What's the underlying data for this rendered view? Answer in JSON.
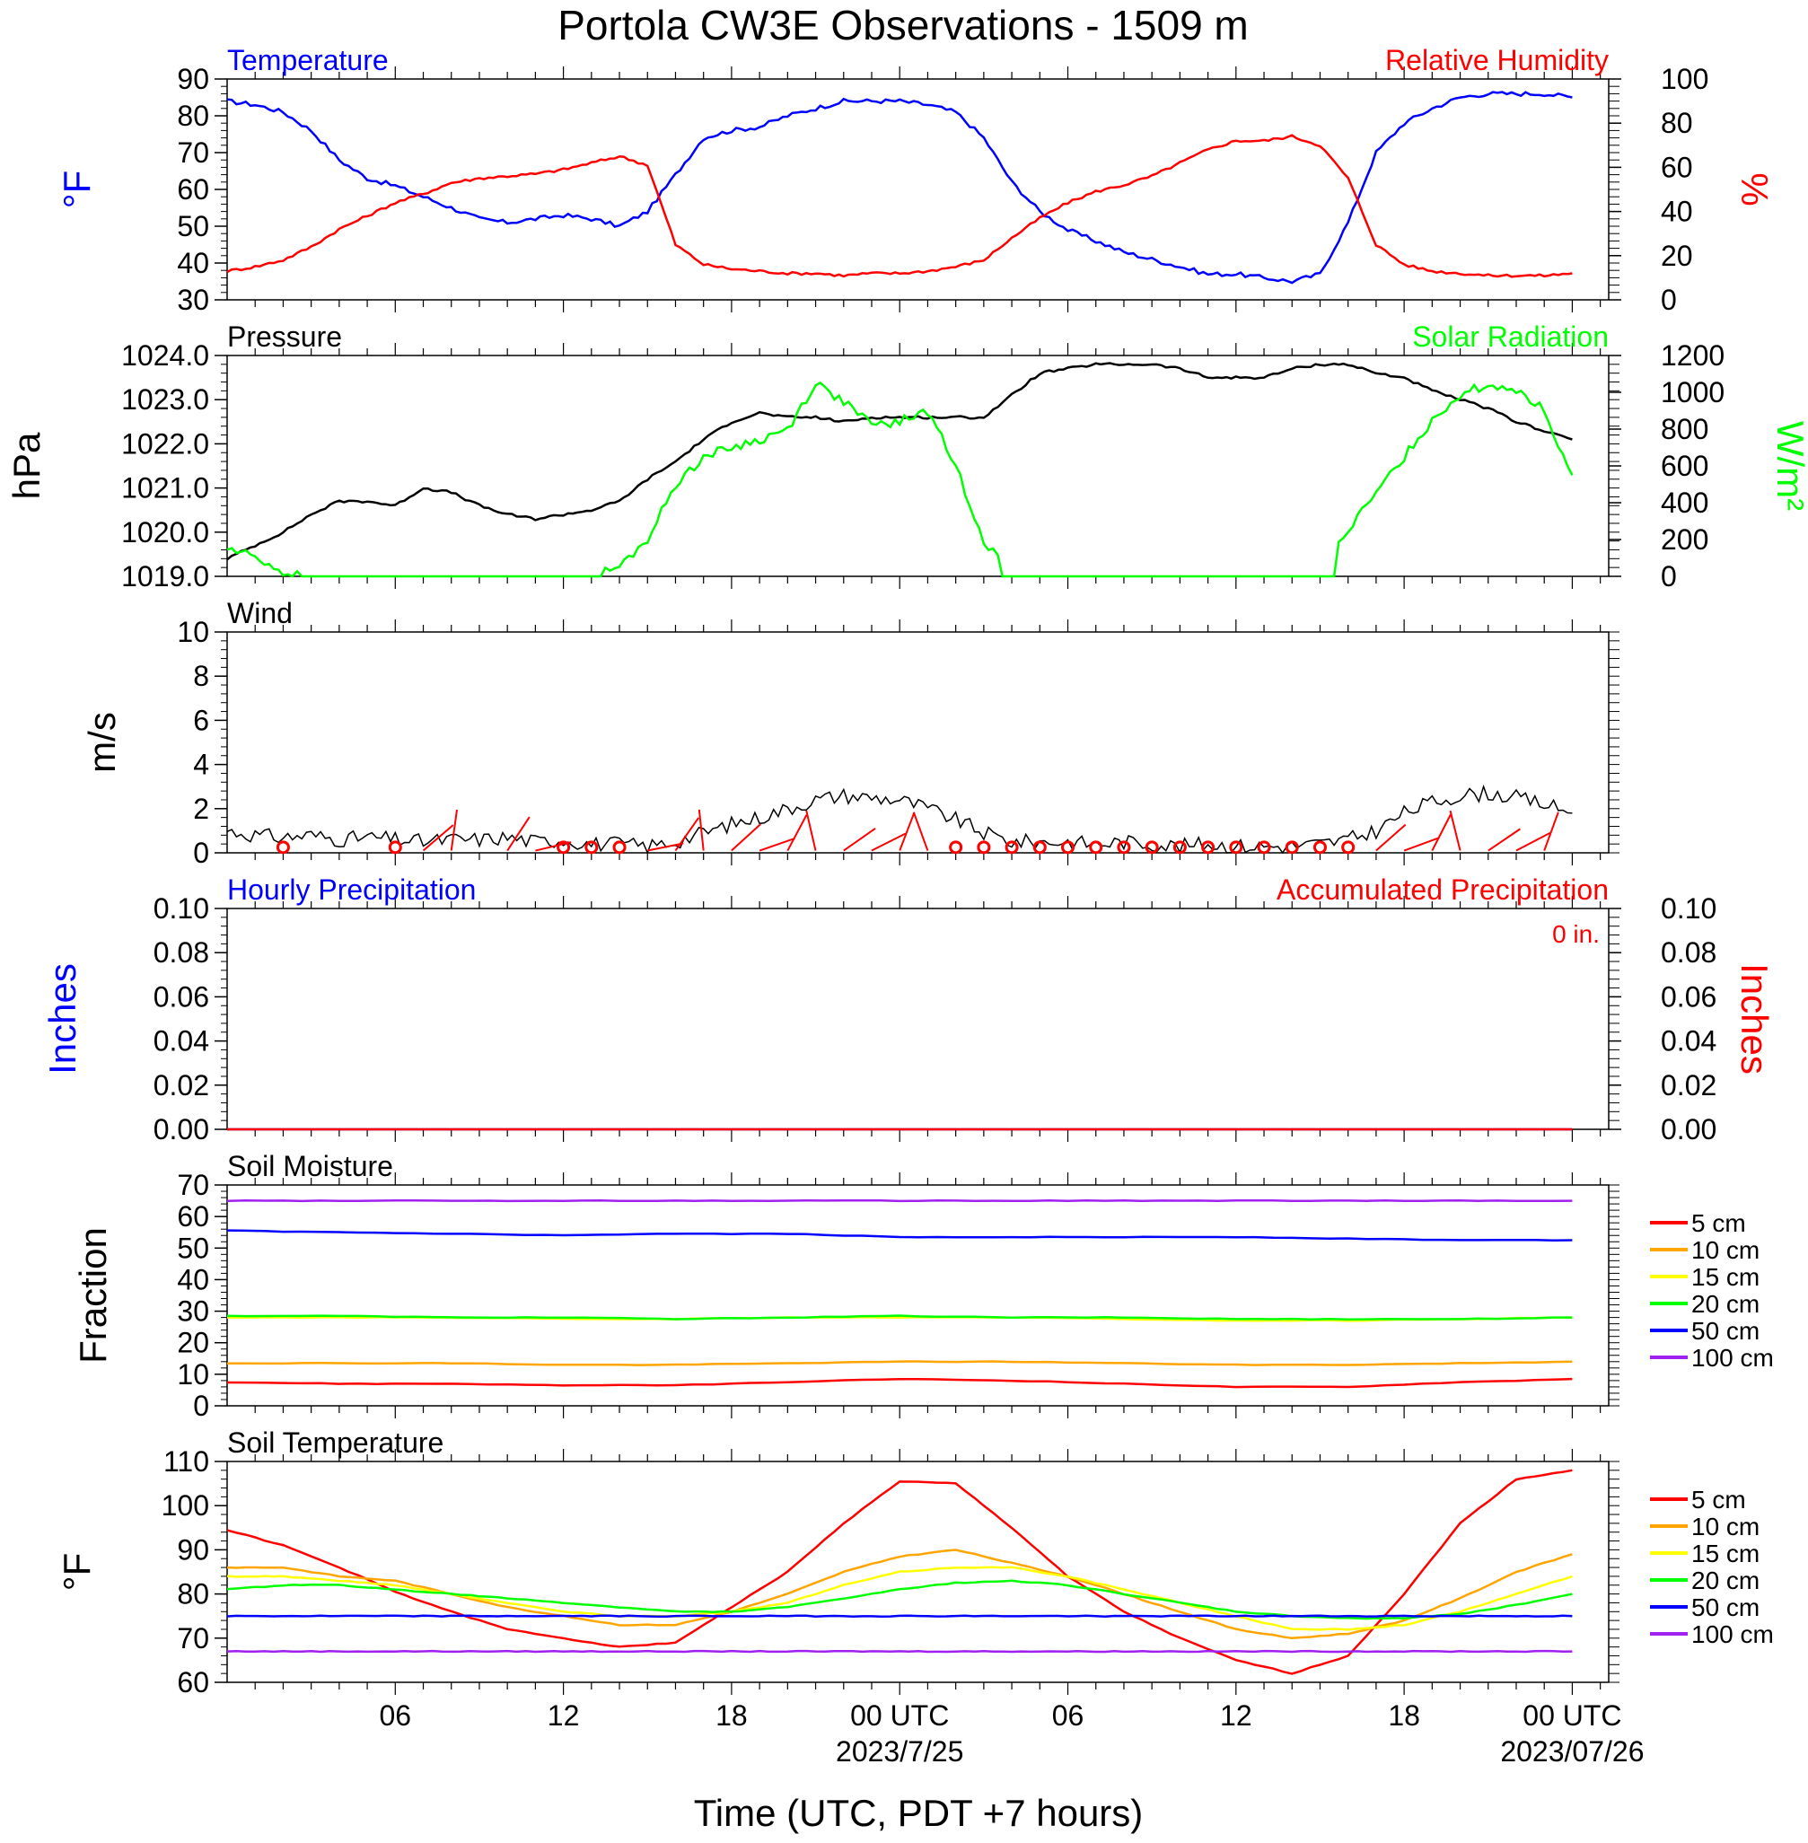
{
  "title": "Portola CW3E Observations - 1509 m",
  "xlabel": "Time (UTC, PDT +7 hours)",
  "x_ticks": [
    {
      "hour": 6,
      "label": "06",
      "date": ""
    },
    {
      "hour": 12,
      "label": "12",
      "date": ""
    },
    {
      "hour": 18,
      "label": "18",
      "date": ""
    },
    {
      "hour": 24,
      "label": "00 UTC",
      "date": "2023/7/25"
    },
    {
      "hour": 30,
      "label": "06",
      "date": ""
    },
    {
      "hour": 36,
      "label": "12",
      "date": ""
    },
    {
      "hour": 42,
      "label": "18",
      "date": ""
    },
    {
      "hour": 48,
      "label": "00 UTC",
      "date": "2023/07/26"
    }
  ],
  "colors": {
    "red": "#ff0000",
    "blue": "#0000ff",
    "green": "#00ff00",
    "black": "#000000",
    "orange": "#ffa500",
    "yellow": "#ffff00",
    "purple": "#a020f0"
  },
  "chart_data": [
    {
      "id": "temp_rh",
      "type": "line",
      "left_title": "Temperature",
      "right_title": "Relative Humidity",
      "left_unit": "°F",
      "right_unit": "%",
      "left_ylim": [
        30,
        90
      ],
      "left_ticks": [
        "30",
        "40",
        "50",
        "60",
        "70",
        "80",
        "90"
      ],
      "right_ylim": [
        0,
        100
      ],
      "right_ticks": [
        "0",
        "20",
        "40",
        "60",
        "80",
        "100"
      ],
      "x_hours": [
        0,
        1,
        2,
        3,
        4,
        5,
        6,
        7,
        8,
        9,
        10,
        11,
        12,
        13,
        14,
        15,
        16,
        17,
        18,
        19,
        20,
        21,
        22,
        23,
        24,
        25,
        26,
        27,
        28,
        29,
        30,
        31,
        32,
        33,
        34,
        35,
        36,
        37,
        38,
        39,
        40,
        41,
        42,
        43,
        44,
        45,
        46,
        47,
        48
      ],
      "series": [
        {
          "name": "Temperature",
          "axis": "left",
          "color": "blue",
          "values": [
            84,
            83,
            81,
            76,
            68,
            63,
            61,
            58,
            55,
            52,
            51,
            52,
            53,
            52,
            50,
            54,
            64,
            74,
            76,
            77,
            80,
            82,
            84,
            84,
            84,
            83,
            81,
            74,
            62,
            54,
            49,
            46,
            43,
            41,
            39,
            37,
            37,
            36,
            35,
            37,
            51,
            70,
            78,
            82,
            85,
            86,
            86,
            86,
            85
          ]
        },
        {
          "name": "Relative Humidity",
          "axis": "right",
          "color": "red",
          "values": [
            13,
            15,
            18,
            24,
            32,
            38,
            44,
            48,
            53,
            55,
            56,
            57,
            59,
            62,
            65,
            61,
            25,
            16,
            14,
            13,
            12,
            12,
            11,
            12,
            12,
            13,
            15,
            18,
            28,
            37,
            44,
            49,
            52,
            56,
            62,
            68,
            72,
            72,
            74,
            70,
            55,
            25,
            16,
            13,
            12,
            11,
            11,
            11,
            12
          ]
        }
      ]
    },
    {
      "id": "pressure_solar",
      "type": "line",
      "left_title": "Pressure",
      "right_title": "Solar Radiation",
      "left_unit": "hPa",
      "right_unit": "W/m²",
      "left_ylim": [
        1019,
        1024
      ],
      "left_ticks": [
        "1019.0",
        "1020.0",
        "1021.0",
        "1022.0",
        "1023.0",
        "1024.0"
      ],
      "right_ylim": [
        0,
        1200
      ],
      "right_ticks": [
        "0",
        "200",
        "400",
        "600",
        "800",
        "1000",
        "1200"
      ],
      "x_hours": [
        0,
        1,
        2,
        3,
        4,
        5,
        6,
        7,
        8,
        9,
        10,
        11,
        12,
        13,
        14,
        15,
        16,
        17,
        18,
        19,
        20,
        21,
        22,
        23,
        24,
        25,
        26,
        27,
        28,
        29,
        30,
        31,
        32,
        33,
        34,
        35,
        36,
        37,
        38,
        39,
        40,
        41,
        42,
        43,
        44,
        45,
        46,
        47,
        48
      ],
      "series": [
        {
          "name": "Pressure",
          "axis": "left",
          "color": "black",
          "values": [
            1019.4,
            1019.7,
            1020.0,
            1020.4,
            1020.7,
            1020.7,
            1020.6,
            1021.0,
            1020.9,
            1020.6,
            1020.4,
            1020.3,
            1020.4,
            1020.5,
            1020.7,
            1021.2,
            1021.6,
            1022.1,
            1022.5,
            1022.7,
            1022.6,
            1022.6,
            1022.5,
            1022.6,
            1022.6,
            1022.6,
            1022.6,
            1022.6,
            1023.1,
            1023.6,
            1023.7,
            1023.8,
            1023.8,
            1023.8,
            1023.7,
            1023.5,
            1023.5,
            1023.5,
            1023.7,
            1023.8,
            1023.8,
            1023.6,
            1023.5,
            1023.2,
            1023.0,
            1022.8,
            1022.5,
            1022.3,
            1022.1
          ]
        },
        {
          "name": "Solar Radiation",
          "axis": "right",
          "color": "green",
          "values": [
            150,
            110,
            20,
            0,
            0,
            0,
            0,
            0,
            0,
            0,
            0,
            0,
            0,
            0,
            50,
            200,
            500,
            650,
            700,
            740,
            800,
            1050,
            950,
            820,
            840,
            900,
            600,
            200,
            0,
            0,
            0,
            0,
            0,
            0,
            0,
            0,
            0,
            0,
            0,
            0,
            250,
            450,
            650,
            850,
            990,
            1040,
            1020,
            900,
            550
          ]
        }
      ]
    },
    {
      "id": "wind",
      "type": "line",
      "left_title": "Wind",
      "left_unit": "m/s",
      "left_ylim": [
        0,
        10
      ],
      "left_ticks": [
        "0",
        "2",
        "4",
        "6",
        "8",
        "10"
      ],
      "x_hours": [
        0,
        1,
        2,
        3,
        4,
        5,
        6,
        7,
        8,
        9,
        10,
        11,
        12,
        13,
        14,
        15,
        16,
        17,
        18,
        19,
        20,
        21,
        22,
        23,
        24,
        25,
        26,
        27,
        28,
        29,
        30,
        31,
        32,
        33,
        34,
        35,
        36,
        37,
        38,
        39,
        40,
        41,
        42,
        43,
        44,
        45,
        46,
        47,
        48
      ],
      "series": [
        {
          "name": "Wind speed",
          "axis": "left",
          "color": "black",
          "values": [
            1.0,
            0.8,
            0.7,
            0.8,
            0.6,
            0.7,
            0.6,
            0.5,
            0.6,
            0.6,
            0.7,
            0.5,
            0.6,
            0.4,
            0.4,
            0.3,
            0.5,
            0.9,
            1.3,
            1.6,
            2.0,
            2.4,
            2.6,
            2.5,
            2.4,
            2.0,
            1.5,
            0.9,
            0.5,
            0.5,
            0.5,
            0.4,
            0.5,
            0.4,
            0.3,
            0.4,
            0.3,
            0.3,
            0.3,
            0.4,
            0.6,
            1.0,
            1.8,
            2.3,
            2.6,
            2.7,
            2.5,
            2.2,
            1.8
          ]
        }
      ],
      "barb_hours": [
        2,
        6,
        7,
        8,
        10,
        11,
        12,
        13,
        14,
        15,
        16,
        17,
        18,
        19,
        20,
        21,
        22,
        23,
        24,
        25,
        26,
        27,
        28,
        29,
        30,
        31,
        32,
        33,
        34,
        35,
        36,
        37,
        38,
        39,
        40,
        41,
        42,
        43,
        44,
        45,
        46,
        47
      ],
      "calm_hours": [
        2,
        6,
        12,
        13,
        14,
        26,
        27,
        28,
        29,
        30,
        31,
        32,
        33,
        34,
        35,
        36,
        37,
        38,
        39,
        40
      ]
    },
    {
      "id": "precip",
      "type": "line",
      "left_title": "Hourly Precipitation",
      "right_title": "Accumulated Precipitation",
      "accum_label": "0 in.",
      "left_unit": "Inches",
      "right_unit": "Inches",
      "left_ylim": [
        0,
        0.1
      ],
      "left_ticks": [
        "0.00",
        "0.02",
        "0.04",
        "0.06",
        "0.08",
        "0.10"
      ],
      "right_ylim": [
        0,
        0.1
      ],
      "right_ticks": [
        "0.00",
        "0.02",
        "0.04",
        "0.06",
        "0.08",
        "0.10"
      ],
      "x_hours": [
        0,
        48
      ],
      "series": [
        {
          "name": "Hourly Precipitation",
          "axis": "left",
          "color": "blue",
          "values": [
            0,
            0
          ]
        },
        {
          "name": "Accumulated Precipitation",
          "axis": "left",
          "color": "red",
          "values": [
            0,
            0
          ]
        }
      ]
    },
    {
      "id": "soil_moisture",
      "type": "line",
      "left_title": "Soil Moisture",
      "left_unit": "Fraction",
      "left_ylim": [
        0,
        70
      ],
      "left_ticks": [
        "0",
        "10",
        "20",
        "30",
        "40",
        "50",
        "60",
        "70"
      ],
      "x_hours": [
        0,
        4,
        8,
        12,
        16,
        20,
        24,
        28,
        32,
        36,
        40,
        44,
        48
      ],
      "legend": [
        "5 cm",
        "10 cm",
        "15 cm",
        "20 cm",
        "50 cm",
        "100 cm"
      ],
      "series": [
        {
          "name": "5 cm",
          "color": "red",
          "values": [
            7.5,
            7,
            7,
            6.5,
            6.5,
            7.5,
            8.5,
            8,
            7,
            6,
            6,
            7.5,
            8.5
          ]
        },
        {
          "name": "10 cm",
          "color": "orange",
          "values": [
            13.5,
            13.5,
            13.5,
            13,
            13,
            13.5,
            14,
            14,
            13.5,
            13,
            13,
            13.5,
            14
          ]
        },
        {
          "name": "15 cm",
          "color": "yellow",
          "values": [
            28,
            28,
            28,
            27.5,
            27.5,
            28,
            28,
            28,
            27.5,
            27,
            27,
            27.5,
            28
          ]
        },
        {
          "name": "20 cm",
          "color": "green",
          "values": [
            28.5,
            28.5,
            28,
            28,
            27.5,
            28,
            28.5,
            28,
            28,
            27.5,
            27.5,
            27.5,
            28
          ]
        },
        {
          "name": "50 cm",
          "color": "blue",
          "values": [
            55.5,
            55,
            54.5,
            54,
            54.5,
            54.5,
            53.5,
            53.5,
            53.5,
            53.5,
            53,
            52.5,
            52.5
          ]
        },
        {
          "name": "100 cm",
          "color": "purple",
          "values": [
            65,
            65,
            65,
            65,
            65,
            65,
            65,
            65,
            65,
            65,
            65,
            65,
            65
          ]
        }
      ]
    },
    {
      "id": "soil_temp",
      "type": "line",
      "left_title": "Soil Temperature",
      "left_unit": "°F",
      "left_ylim": [
        60,
        110
      ],
      "left_ticks": [
        "60",
        "70",
        "80",
        "90",
        "100",
        "110"
      ],
      "x_hours": [
        0,
        2,
        4,
        6,
        8,
        10,
        12,
        14,
        16,
        18,
        20,
        22,
        24,
        26,
        28,
        30,
        32,
        34,
        36,
        38,
        40,
        42,
        44,
        46,
        48
      ],
      "legend": [
        "5 cm",
        "10 cm",
        "15 cm",
        "20 cm",
        "50 cm",
        "100 cm"
      ],
      "series": [
        {
          "name": "5 cm",
          "color": "red",
          "values": [
            94.5,
            91,
            86,
            80.5,
            76,
            72,
            70,
            68,
            69,
            77,
            85,
            96,
            105.5,
            105,
            95,
            84,
            76,
            70,
            65,
            62,
            66,
            80,
            96,
            106,
            108
          ]
        },
        {
          "name": "10 cm",
          "color": "orange",
          "values": [
            86,
            86,
            84,
            83,
            80,
            77,
            75,
            73,
            73,
            76,
            80,
            85,
            88.5,
            90,
            87,
            84,
            80,
            76,
            72,
            70,
            71,
            74,
            79,
            85,
            89
          ]
        },
        {
          "name": "15 cm",
          "color": "yellow",
          "values": [
            84,
            84,
            83,
            82,
            80,
            78,
            76,
            75,
            75,
            76,
            78,
            82,
            85,
            86,
            86,
            84,
            81,
            78,
            75,
            72,
            72,
            73,
            76,
            80,
            84
          ]
        },
        {
          "name": "20 cm",
          "color": "green",
          "values": [
            81,
            82,
            82,
            81,
            80,
            79,
            78,
            77,
            76,
            76,
            77,
            79,
            81,
            82.5,
            83,
            82,
            80,
            78,
            76,
            75,
            74.5,
            74.5,
            75.5,
            77.5,
            80
          ]
        },
        {
          "name": "50 cm",
          "color": "blue",
          "values": [
            75,
            75,
            75,
            75,
            75,
            75,
            75,
            75,
            75,
            75,
            75,
            75,
            75,
            75,
            75,
            75,
            75,
            75,
            75,
            75,
            75,
            75,
            75,
            75,
            75
          ]
        },
        {
          "name": "100 cm",
          "color": "purple",
          "values": [
            67,
            67,
            67,
            67,
            67,
            67,
            67,
            67,
            67,
            67,
            67,
            67,
            67,
            67,
            67,
            67,
            67,
            67,
            67,
            67,
            67,
            67,
            67,
            67,
            67
          ]
        }
      ]
    }
  ]
}
